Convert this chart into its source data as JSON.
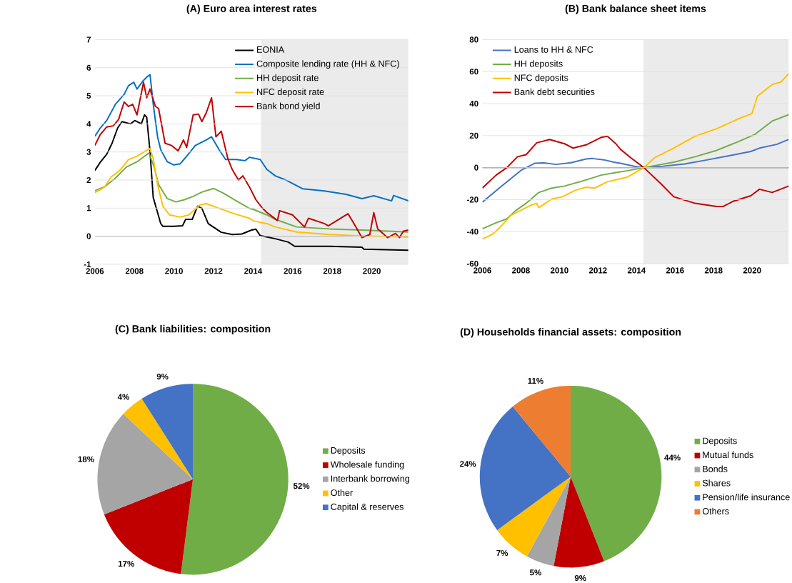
{
  "chart_data": [
    {
      "type": "line",
      "title": "(A) Euro area interest rates",
      "xlim": [
        2006,
        2021.85
      ],
      "ylim": [
        -1,
        7
      ],
      "xticks": [
        2006,
        2008,
        2010,
        2012,
        2014,
        2016,
        2018,
        2020
      ],
      "yticks": [
        -1,
        0,
        1,
        2,
        3,
        4,
        5,
        6,
        7
      ],
      "grid": "y",
      "legend": "top right",
      "line_style": "solid",
      "bands": [
        {
          "axis": "x",
          "from": 2014.4,
          "to": 2021.85,
          "color": "#ebebeb"
        }
      ],
      "ref_lines": [
        {
          "axis": "y",
          "value": 0,
          "color": "#595959"
        }
      ],
      "series": [
        {
          "name": "EONIA",
          "color": "#000000",
          "x": [
            2006.0,
            2006.27,
            2006.6,
            2006.87,
            2007.15,
            2007.37,
            2007.8,
            2008.02,
            2008.35,
            2008.51,
            2008.62,
            2008.79,
            2008.95,
            2009.17,
            2009.33,
            2009.44,
            2009.99,
            2010.43,
            2010.59,
            2010.92,
            2011.19,
            2011.41,
            2011.73,
            2011.9,
            2012.39,
            2012.94,
            2013.43,
            2013.92,
            2014.14,
            2014.36,
            2015.12,
            2015.78,
            2016.1,
            2017.86,
            2019.5,
            2019.6,
            2021.85
          ],
          "values": [
            2.34,
            2.63,
            2.92,
            3.31,
            3.85,
            4.08,
            4.0,
            4.12,
            4.0,
            4.32,
            4.24,
            3.0,
            1.38,
            0.84,
            0.45,
            0.35,
            0.35,
            0.37,
            0.6,
            0.6,
            1.07,
            0.99,
            0.45,
            0.37,
            0.14,
            0.06,
            0.08,
            0.22,
            0.25,
            0.02,
            -0.09,
            -0.21,
            -0.36,
            -0.36,
            -0.39,
            -0.46,
            -0.5
          ]
        },
        {
          "name": "Composite lending rate (HH & NFC)",
          "color": "#0070c0",
          "x": [
            2006.0,
            2006.27,
            2006.6,
            2007.04,
            2007.48,
            2007.7,
            2007.97,
            2008.13,
            2008.46,
            2008.68,
            2008.79,
            2008.95,
            2009.17,
            2009.33,
            2009.66,
            2009.99,
            2010.32,
            2010.64,
            2011.08,
            2011.63,
            2011.9,
            2012.28,
            2012.61,
            2013.15,
            2013.59,
            2013.81,
            2014.36,
            2014.69,
            2015.12,
            2015.66,
            2016.5,
            2017.6,
            2018.7,
            2019.5,
            2020.1,
            2021.0,
            2021.1,
            2021.85
          ],
          "values": [
            3.56,
            3.85,
            4.12,
            4.7,
            5.05,
            5.36,
            5.48,
            5.24,
            5.55,
            5.7,
            5.75,
            4.7,
            3.54,
            3.08,
            2.65,
            2.54,
            2.58,
            2.85,
            3.23,
            3.43,
            3.54,
            3.08,
            2.73,
            2.73,
            2.69,
            2.81,
            2.73,
            2.38,
            2.15,
            2.0,
            1.69,
            1.61,
            1.49,
            1.34,
            1.44,
            1.26,
            1.45,
            1.26
          ]
        },
        {
          "name": "HH deposit rate",
          "color": "#70ad47",
          "x": [
            2006.0,
            2006.49,
            2007.04,
            2007.59,
            2008.13,
            2008.73,
            2009.0,
            2009.22,
            2009.66,
            2010.1,
            2010.53,
            2010.97,
            2011.41,
            2012.01,
            2012.5,
            2013.15,
            2013.81,
            2014.03,
            2014.69,
            2015.12,
            2016.2,
            2017.86,
            2019.5,
            2021.85
          ],
          "values": [
            1.62,
            1.76,
            2.07,
            2.46,
            2.65,
            2.96,
            2.46,
            1.84,
            1.34,
            1.22,
            1.3,
            1.42,
            1.57,
            1.7,
            1.53,
            1.26,
            0.99,
            0.95,
            0.76,
            0.6,
            0.33,
            0.26,
            0.22,
            0.15
          ]
        },
        {
          "name": "NFC deposit rate",
          "color": "#ffc000",
          "x": [
            2006.0,
            2006.49,
            2006.82,
            2007.26,
            2007.7,
            2008.13,
            2008.57,
            2008.79,
            2008.95,
            2009.17,
            2009.44,
            2009.77,
            2010.32,
            2010.75,
            2011.3,
            2011.63,
            2012.28,
            2013.05,
            2013.81,
            2014.03,
            2014.69,
            2015.12,
            2016.2,
            2017.86,
            2019.5,
            2021.85
          ],
          "values": [
            1.55,
            1.75,
            2.11,
            2.34,
            2.73,
            2.85,
            3.04,
            3.12,
            2.77,
            1.84,
            1.07,
            0.76,
            0.68,
            0.76,
            1.11,
            1.16,
            0.99,
            0.8,
            0.64,
            0.54,
            0.45,
            0.33,
            0.15,
            0.06,
            0.01,
            -0.03
          ]
        },
        {
          "name": "Bank bond yield",
          "color": "#c00000",
          "x": [
            2006.0,
            2006.27,
            2006.6,
            2006.93,
            2007.2,
            2007.48,
            2007.7,
            2007.91,
            2008.13,
            2008.46,
            2008.62,
            2008.79,
            2009.06,
            2009.22,
            2009.55,
            2009.88,
            2010.21,
            2010.48,
            2010.64,
            2010.97,
            2011.24,
            2011.41,
            2011.63,
            2011.9,
            2012.12,
            2012.39,
            2012.72,
            2012.94,
            2013.26,
            2013.48,
            2013.81,
            2014.14,
            2014.47,
            2014.69,
            2015.23,
            2015.34,
            2015.99,
            2016.6,
            2016.8,
            2017.6,
            2017.8,
            2018.8,
            2019.1,
            2019.5,
            2019.9,
            2020.1,
            2020.3,
            2020.8,
            2021.2,
            2021.4,
            2021.6,
            2021.85
          ],
          "values": [
            3.23,
            3.62,
            3.89,
            3.93,
            4.16,
            4.78,
            4.62,
            4.7,
            4.32,
            5.48,
            4.93,
            5.24,
            4.62,
            4.55,
            3.31,
            3.23,
            3.04,
            3.43,
            3.16,
            4.32,
            4.35,
            4.08,
            4.39,
            4.93,
            3.54,
            3.74,
            2.77,
            2.38,
            2.0,
            2.15,
            1.76,
            1.3,
            1.0,
            0.85,
            0.56,
            0.91,
            0.76,
            0.33,
            0.64,
            0.45,
            0.37,
            0.8,
            0.45,
            -0.05,
            0.06,
            0.84,
            0.26,
            -0.05,
            0.1,
            -0.05,
            0.18,
            0.22
          ]
        }
      ]
    },
    {
      "type": "line",
      "title": "(B) Bank balance sheet items",
      "xlim": [
        2006,
        2021.9
      ],
      "ylim": [
        -60,
        80
      ],
      "xticks": [
        2006,
        2008,
        2010,
        2012,
        2014,
        2016,
        2018,
        2020
      ],
      "yticks": [
        -60,
        -40,
        -20,
        0,
        20,
        40,
        60,
        80
      ],
      "grid": "y",
      "legend": "top left",
      "line_style": "solid",
      "bands": [
        {
          "axis": "x",
          "from": 2014.35,
          "to": 2021.9,
          "color": "#ebebeb"
        }
      ],
      "ref_lines": [
        {
          "axis": "y",
          "value": 0,
          "color": "#000000"
        }
      ],
      "series": [
        {
          "name": "Loans to HH & NFC",
          "color": "#4472c4",
          "x": [
            2006.0,
            2006.93,
            2008.04,
            2008.71,
            2009.16,
            2009.82,
            2010.6,
            2011.38,
            2011.71,
            2012.38,
            2012.82,
            2013.16,
            2013.93,
            2014.38,
            2015.38,
            2016.49,
            2017.6,
            2018.71,
            2019.93,
            2020.38,
            2021.27,
            2021.9
          ],
          "values": [
            -21.6,
            -12.2,
            -1.4,
            2.7,
            3.0,
            2.0,
            3.1,
            5.4,
            5.7,
            4.7,
            3.4,
            2.7,
            0.7,
            0,
            0.9,
            2.3,
            4.7,
            7.2,
            10.1,
            12.2,
            14.5,
            17.6
          ]
        },
        {
          "name": "HH deposits",
          "color": "#70ad47",
          "x": [
            2006.0,
            2006.71,
            2007.27,
            2007.71,
            2008.27,
            2008.93,
            2009.6,
            2010.27,
            2011.38,
            2012.16,
            2012.93,
            2013.49,
            2014.38,
            2015.93,
            2017.04,
            2018.16,
            2019.27,
            2020.16,
            2021.04,
            2021.9
          ],
          "values": [
            -38.2,
            -34.5,
            -32.0,
            -27.0,
            -22.3,
            -15.5,
            -12.8,
            -11.5,
            -7.7,
            -4.7,
            -3.1,
            -2.0,
            0,
            3.4,
            6.8,
            10.8,
            16.2,
            20.9,
            29.1,
            33.1
          ]
        },
        {
          "name": "NFC deposits",
          "color": "#ffc000",
          "x": [
            2006.0,
            2006.49,
            2006.93,
            2007.49,
            2008.04,
            2008.49,
            2008.82,
            2008.93,
            2009.6,
            2010.16,
            2010.82,
            2011.38,
            2011.82,
            2012.49,
            2013.49,
            2014.38,
            2014.93,
            2015.93,
            2017.04,
            2018.16,
            2019.27,
            2019.99,
            2020.27,
            2021.04,
            2021.49,
            2021.9
          ],
          "values": [
            -44.6,
            -41.9,
            -37.2,
            -29.7,
            -26.4,
            -23.6,
            -22.3,
            -25.0,
            -19.6,
            -18.2,
            -14.2,
            -12.2,
            -12.8,
            -8.8,
            -6.1,
            0,
            6.1,
            12.2,
            19.6,
            24.3,
            30.4,
            33.8,
            44.6,
            52.0,
            53.4,
            58.8
          ]
        },
        {
          "name": "Bank debt securities",
          "color": "#c00000",
          "x": [
            2006.0,
            2006.71,
            2007.27,
            2007.82,
            2008.27,
            2008.82,
            2009.49,
            2010.27,
            2010.71,
            2011.38,
            2012.16,
            2012.49,
            2012.93,
            2013.16,
            2013.71,
            2014.38,
            2015.27,
            2015.93,
            2017.04,
            2018.16,
            2018.49,
            2019.04,
            2019.93,
            2020.38,
            2021.04,
            2021.9
          ],
          "values": [
            -12.8,
            -4.7,
            0,
            6.8,
            8.1,
            15.5,
            17.6,
            14.9,
            12.2,
            14.2,
            18.9,
            19.6,
            14.9,
            11.5,
            6.1,
            0,
            -10.1,
            -18.2,
            -22.3,
            -24.3,
            -24.3,
            -20.9,
            -17.6,
            -13.5,
            -15.5,
            -11.5
          ]
        }
      ]
    },
    {
      "type": "pie",
      "title": "(C) Bank liabilities: composition",
      "legend": "right",
      "categories": [
        "Deposits",
        "Wholesale funding",
        "Interbank borrowing",
        "Other",
        "Capital & reserves"
      ],
      "values": [
        52,
        17,
        18,
        4,
        9
      ],
      "colors": [
        "#70ad47",
        "#c00000",
        "#a5a5a5",
        "#ffc000",
        "#4472c4"
      ],
      "value_labels": [
        "52%",
        "17%",
        "18%",
        "4%",
        "9%"
      ]
    },
    {
      "type": "pie",
      "title": "(D) Households financial assets: composition",
      "legend": "right",
      "categories": [
        "Deposits",
        "Mutual funds",
        "Bonds",
        "Shares",
        "Pension/life insurance",
        "Others"
      ],
      "values": [
        44,
        9,
        5,
        7,
        24,
        11
      ],
      "colors": [
        "#70ad47",
        "#c00000",
        "#a5a5a5",
        "#ffc000",
        "#4472c4",
        "#ed7d31"
      ],
      "value_labels": [
        "44%",
        "9%",
        "5%",
        "7%",
        "24%",
        "11%"
      ]
    }
  ]
}
